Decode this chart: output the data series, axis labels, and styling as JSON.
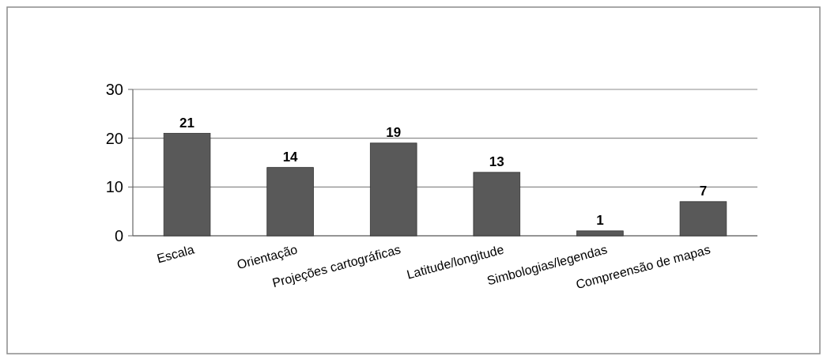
{
  "chart_data": {
    "type": "bar",
    "categories": [
      "Escala",
      "Orientação",
      "Projeções cartográficas",
      "Latitude/longitude",
      "Simbologias/legendas",
      "Compreensão de mapas"
    ],
    "values": [
      21,
      14,
      19,
      13,
      1,
      7
    ],
    "color": "#595959",
    "ylim": [
      0,
      30
    ],
    "yticks": [
      0,
      10,
      20,
      30
    ],
    "grid": "y",
    "data_labels": true
  }
}
